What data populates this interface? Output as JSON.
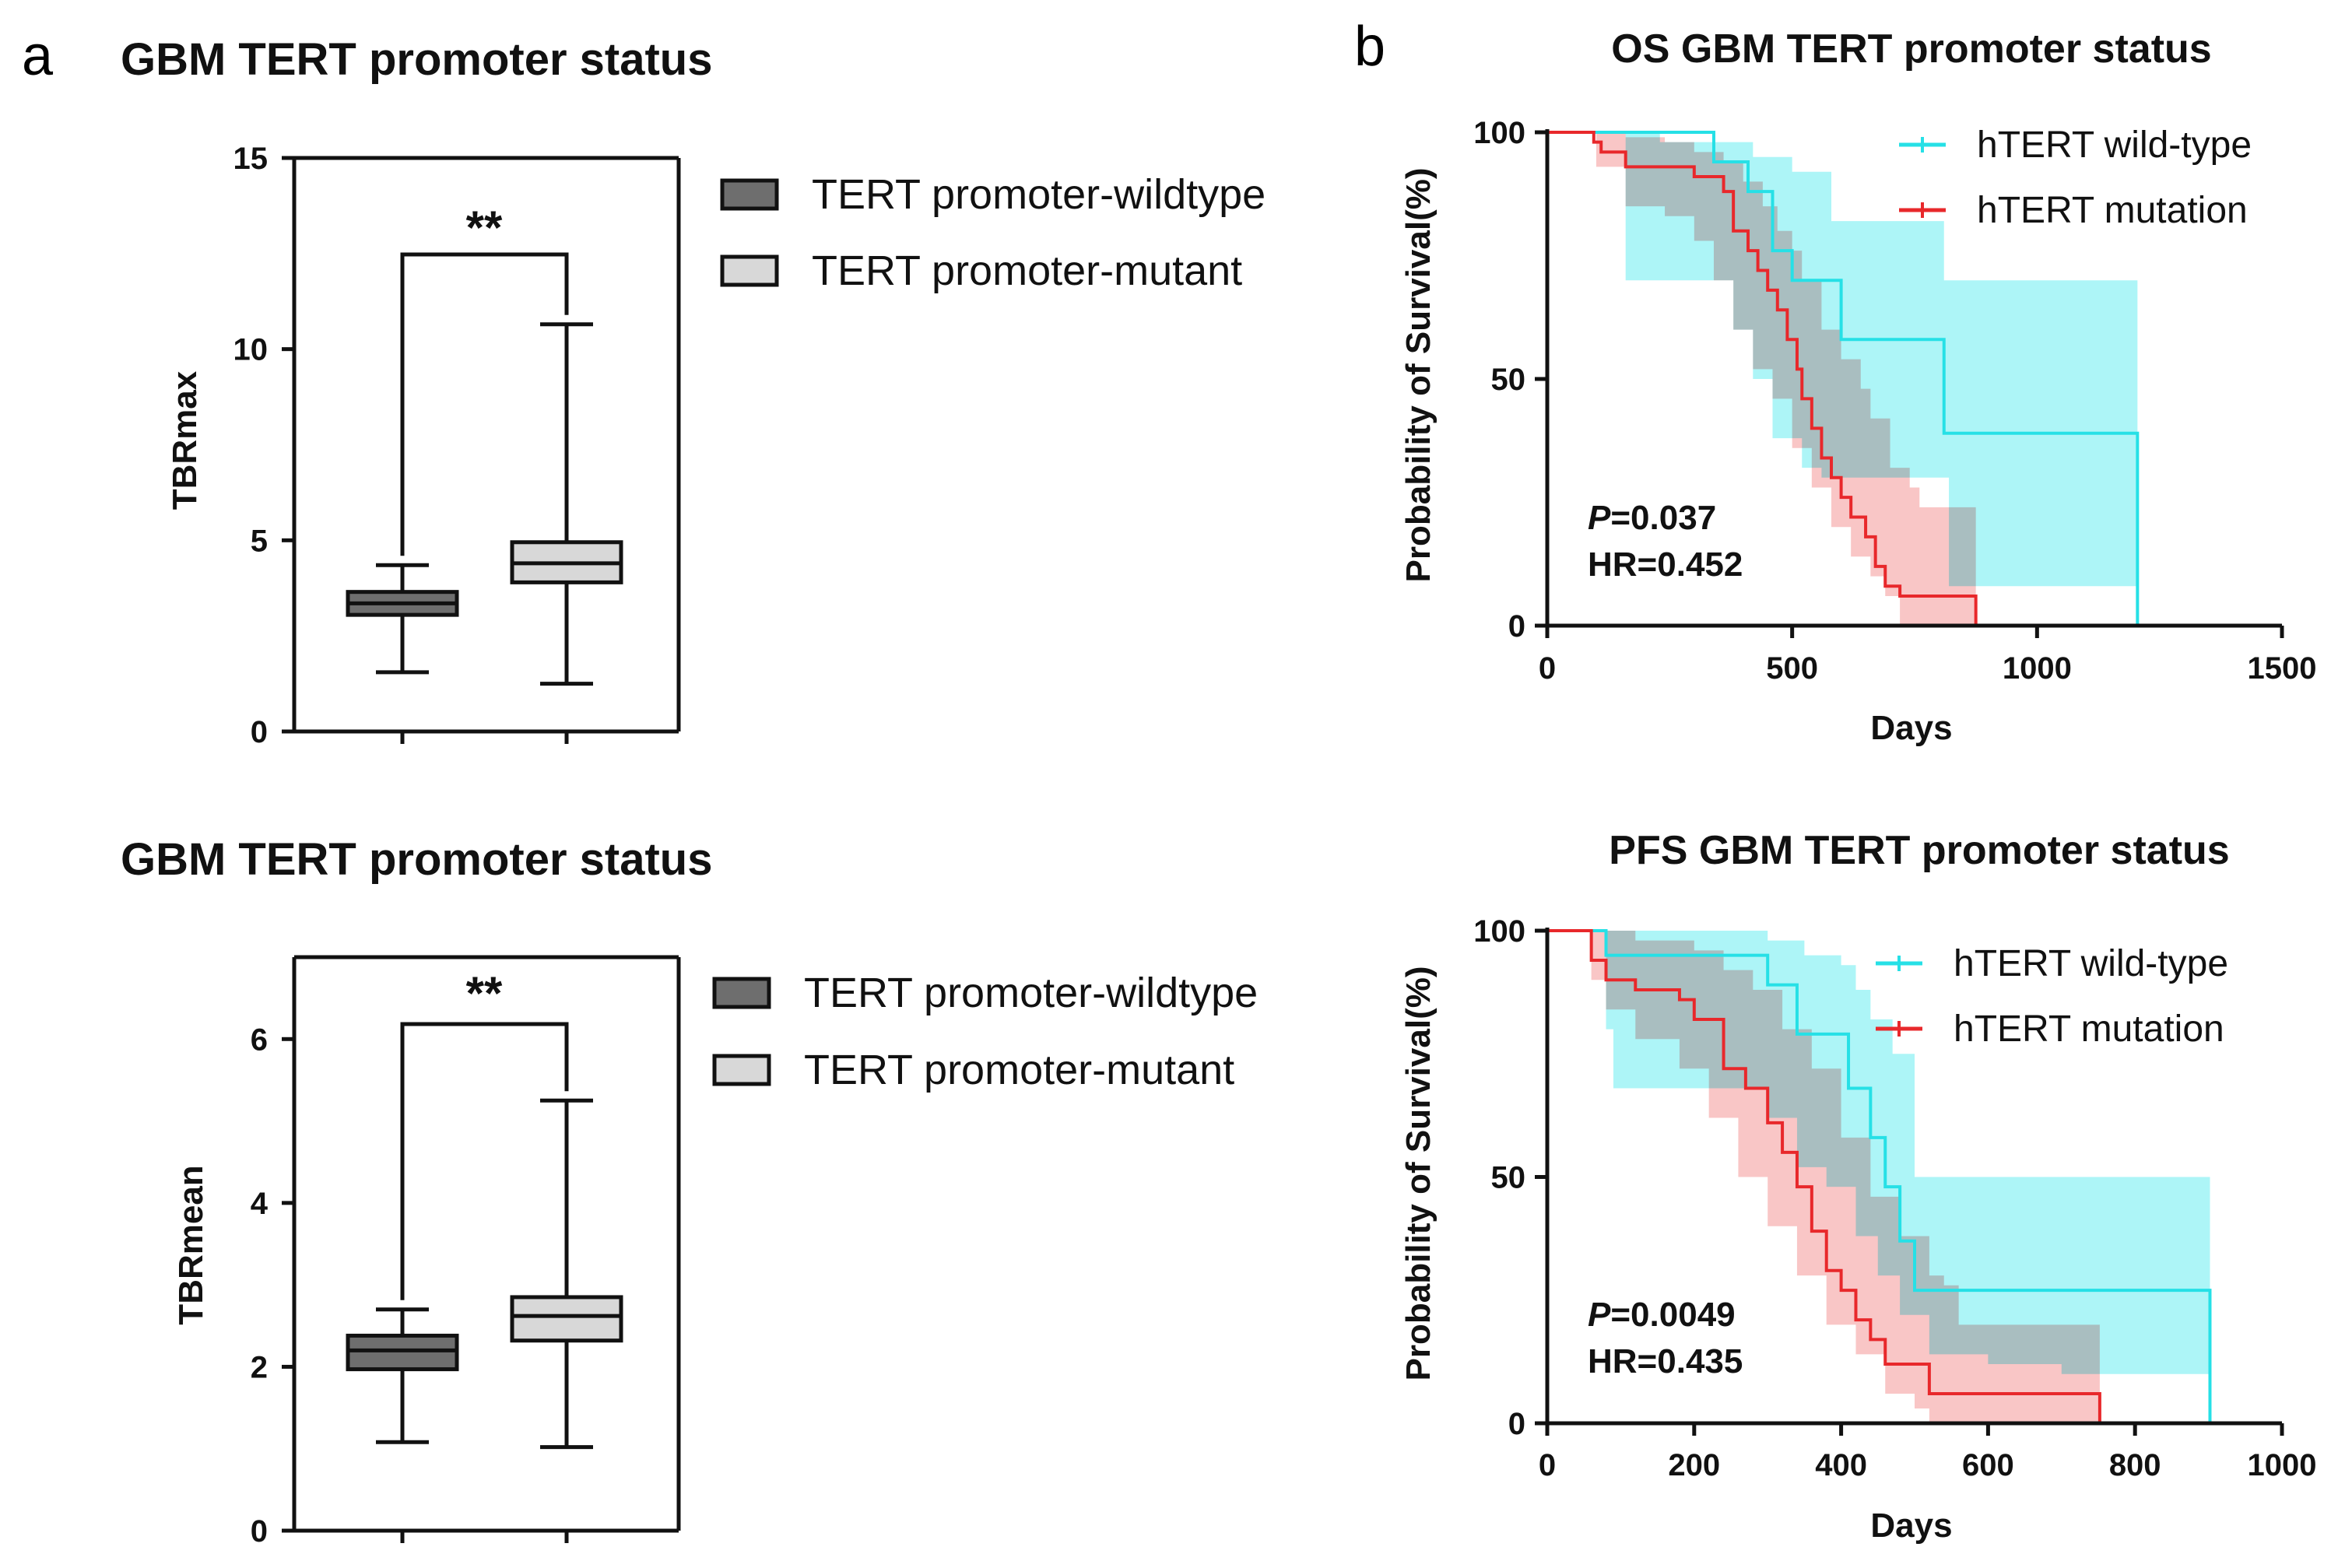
{
  "panel_labels": {
    "a": "a",
    "b": "b"
  },
  "colors": {
    "wildtype_box": "#6e6e6e",
    "mutant_box": "#d8d8d8",
    "wildtype_line": "#26e0e6",
    "wildtype_fill": "#9ff3f6",
    "mutation_line": "#e8282b",
    "mutation_fill": "#f7b3b3",
    "overlap_fill": "#b3b3b3"
  },
  "chart_data": [
    {
      "id": "tbrmax",
      "type": "box",
      "title": "GBM TERT promoter status",
      "ylabel": "TBRmax",
      "xlabel": "",
      "ylim": [
        0,
        15
      ],
      "yticks": [
        "0",
        "5",
        "10",
        "15"
      ],
      "significance": "**",
      "legend": [
        "TERT promoter-wildtype",
        "TERT promoter-mutant"
      ],
      "boxes": [
        {
          "name": "TERT promoter-wildtype",
          "min": 1.55,
          "q1": 3.05,
          "median": 3.35,
          "q3": 3.65,
          "max": 4.35
        },
        {
          "name": "TERT promoter-mutant",
          "min": 1.25,
          "q1": 3.9,
          "median": 4.4,
          "q3": 4.95,
          "max": 10.65
        }
      ]
    },
    {
      "id": "tbrmean",
      "type": "box",
      "title": "GBM TERT promoter status",
      "ylabel": "TBRmean",
      "xlabel": "",
      "ylim": [
        0,
        7
      ],
      "yticks": [
        "0",
        "2",
        "4",
        "6"
      ],
      "significance": "**",
      "legend": [
        "TERT promoter-wildtype",
        "TERT promoter-mutant"
      ],
      "boxes": [
        {
          "name": "TERT promoter-wildtype",
          "min": 1.08,
          "q1": 1.97,
          "median": 2.2,
          "q3": 2.38,
          "max": 2.7
        },
        {
          "name": "TERT promoter-mutant",
          "min": 1.02,
          "q1": 2.32,
          "median": 2.62,
          "q3": 2.85,
          "max": 5.25
        }
      ]
    },
    {
      "id": "os",
      "type": "line",
      "subtype": "kaplan-meier",
      "title": "OS GBM TERT promoter status",
      "xlabel": "Days",
      "ylabel": "Probability of Survival(%)",
      "xlim": [
        0,
        1500
      ],
      "ylim": [
        0,
        100
      ],
      "xticks": [
        "0",
        "500",
        "1000",
        "1500"
      ],
      "yticks": [
        "0",
        "50",
        "100"
      ],
      "p_prefix": "P",
      "p_value": "=0.037",
      "hr": "HR=0.452",
      "series": [
        {
          "name": "hTERT wild-type",
          "steps": [
            [
              0,
              100
            ],
            [
              200,
              100
            ],
            [
              340,
              94
            ],
            [
              410,
              88
            ],
            [
              460,
              76
            ],
            [
              500,
              70
            ],
            [
              580,
              70
            ],
            [
              600,
              58
            ],
            [
              800,
              58
            ],
            [
              810,
              39
            ],
            [
              1200,
              39
            ],
            [
              1205,
              0
            ]
          ],
          "band_lower": [
            [
              0,
              100
            ],
            [
              150,
              100
            ],
            [
              160,
              70
            ],
            [
              350,
              70
            ],
            [
              380,
              60
            ],
            [
              420,
              50
            ],
            [
              460,
              38
            ],
            [
              520,
              32
            ],
            [
              560,
              30
            ],
            [
              800,
              30
            ],
            [
              820,
              8
            ],
            [
              1200,
              8
            ],
            [
              1205,
              0
            ]
          ],
          "band_upper": [
            [
              0,
              100
            ],
            [
              200,
              100
            ],
            [
              230,
              98
            ],
            [
              420,
              95
            ],
            [
              500,
              92
            ],
            [
              580,
              82
            ],
            [
              800,
              82
            ],
            [
              810,
              70
            ],
            [
              1200,
              70
            ],
            [
              1205,
              70
            ]
          ]
        },
        {
          "name": "hTERT mutation",
          "steps": [
            [
              0,
              100
            ],
            [
              90,
              100
            ],
            [
              95,
              98
            ],
            [
              110,
              96
            ],
            [
              160,
              93
            ],
            [
              240,
              93
            ],
            [
              300,
              91
            ],
            [
              360,
              88
            ],
            [
              380,
              80
            ],
            [
              410,
              76
            ],
            [
              430,
              72
            ],
            [
              450,
              68
            ],
            [
              470,
              64
            ],
            [
              490,
              58
            ],
            [
              510,
              52
            ],
            [
              520,
              46
            ],
            [
              540,
              40
            ],
            [
              560,
              34
            ],
            [
              580,
              30
            ],
            [
              600,
              26
            ],
            [
              620,
              22
            ],
            [
              650,
              18
            ],
            [
              670,
              12
            ],
            [
              690,
              8
            ],
            [
              720,
              6
            ],
            [
              870,
              6
            ],
            [
              875,
              0
            ]
          ],
          "band_lower": [
            [
              0,
              100
            ],
            [
              90,
              100
            ],
            [
              100,
              93
            ],
            [
              160,
              85
            ],
            [
              240,
              83
            ],
            [
              300,
              78
            ],
            [
              340,
              70
            ],
            [
              380,
              60
            ],
            [
              420,
              52
            ],
            [
              460,
              46
            ],
            [
              500,
              36
            ],
            [
              540,
              28
            ],
            [
              580,
              20
            ],
            [
              620,
              14
            ],
            [
              660,
              10
            ],
            [
              690,
              6
            ],
            [
              720,
              0
            ],
            [
              875,
              0
            ]
          ],
          "band_upper": [
            [
              0,
              100
            ],
            [
              90,
              100
            ],
            [
              160,
              99
            ],
            [
              240,
              98
            ],
            [
              300,
              96
            ],
            [
              360,
              94
            ],
            [
              400,
              90
            ],
            [
              440,
              85
            ],
            [
              470,
              80
            ],
            [
              500,
              76
            ],
            [
              520,
              70
            ],
            [
              560,
              60
            ],
            [
              600,
              54
            ],
            [
              640,
              48
            ],
            [
              660,
              42
            ],
            [
              700,
              32
            ],
            [
              740,
              28
            ],
            [
              760,
              24
            ],
            [
              870,
              24
            ],
            [
              875,
              0
            ]
          ]
        }
      ]
    },
    {
      "id": "pfs",
      "type": "line",
      "subtype": "kaplan-meier",
      "title": "PFS GBM TERT promoter status",
      "xlabel": "Days",
      "ylabel": "Probability of Survival(%)",
      "xlim": [
        0,
        1000
      ],
      "ylim": [
        0,
        100
      ],
      "xticks": [
        "0",
        "200",
        "400",
        "600",
        "800",
        "1000"
      ],
      "yticks": [
        "0",
        "50",
        "100"
      ],
      "p_prefix": "P",
      "p_value": "=0.0049",
      "hr": "HR=0.435",
      "series": [
        {
          "name": "hTERT wild-type",
          "steps": [
            [
              0,
              100
            ],
            [
              60,
              100
            ],
            [
              80,
              95
            ],
            [
              290,
              95
            ],
            [
              300,
              89
            ],
            [
              340,
              79
            ],
            [
              400,
              79
            ],
            [
              410,
              68
            ],
            [
              440,
              58
            ],
            [
              460,
              48
            ],
            [
              480,
              37
            ],
            [
              500,
              27
            ],
            [
              900,
              27
            ],
            [
              902,
              0
            ]
          ],
          "band_lower": [
            [
              0,
              100
            ],
            [
              60,
              100
            ],
            [
              80,
              80
            ],
            [
              90,
              68
            ],
            [
              290,
              68
            ],
            [
              300,
              62
            ],
            [
              340,
              52
            ],
            [
              380,
              48
            ],
            [
              420,
              38
            ],
            [
              450,
              30
            ],
            [
              480,
              22
            ],
            [
              520,
              14
            ],
            [
              600,
              12
            ],
            [
              700,
              10
            ],
            [
              900,
              8
            ],
            [
              902,
              0
            ]
          ],
          "band_upper": [
            [
              0,
              100
            ],
            [
              80,
              100
            ],
            [
              290,
              100
            ],
            [
              300,
              98
            ],
            [
              350,
              95
            ],
            [
              400,
              93
            ],
            [
              420,
              88
            ],
            [
              440,
              82
            ],
            [
              470,
              75
            ],
            [
              500,
              50
            ],
            [
              900,
              50
            ],
            [
              902,
              50
            ]
          ]
        },
        {
          "name": "hTERT mutation",
          "steps": [
            [
              0,
              100
            ],
            [
              40,
              100
            ],
            [
              60,
              94
            ],
            [
              80,
              90
            ],
            [
              120,
              88
            ],
            [
              180,
              86
            ],
            [
              200,
              82
            ],
            [
              240,
              72
            ],
            [
              270,
              68
            ],
            [
              300,
              61
            ],
            [
              320,
              55
            ],
            [
              340,
              48
            ],
            [
              360,
              39
            ],
            [
              380,
              31
            ],
            [
              400,
              27
            ],
            [
              420,
              21
            ],
            [
              440,
              17
            ],
            [
              460,
              12
            ],
            [
              510,
              12
            ],
            [
              520,
              6
            ],
            [
              750,
              6
            ],
            [
              752,
              0
            ]
          ],
          "band_lower": [
            [
              0,
              100
            ],
            [
              40,
              100
            ],
            [
              60,
              90
            ],
            [
              80,
              84
            ],
            [
              120,
              78
            ],
            [
              180,
              72
            ],
            [
              220,
              62
            ],
            [
              260,
              50
            ],
            [
              300,
              40
            ],
            [
              340,
              30
            ],
            [
              380,
              20
            ],
            [
              420,
              14
            ],
            [
              460,
              6
            ],
            [
              500,
              3
            ],
            [
              520,
              0
            ],
            [
              752,
              0
            ]
          ],
          "band_upper": [
            [
              0,
              100
            ],
            [
              60,
              100
            ],
            [
              120,
              98
            ],
            [
              200,
              96
            ],
            [
              240,
              92
            ],
            [
              280,
              88
            ],
            [
              320,
              80
            ],
            [
              360,
              72
            ],
            [
              400,
              58
            ],
            [
              440,
              46
            ],
            [
              480,
              38
            ],
            [
              520,
              30
            ],
            [
              540,
              28
            ],
            [
              560,
              20
            ],
            [
              750,
              20
            ],
            [
              752,
              20
            ]
          ]
        }
      ]
    }
  ]
}
